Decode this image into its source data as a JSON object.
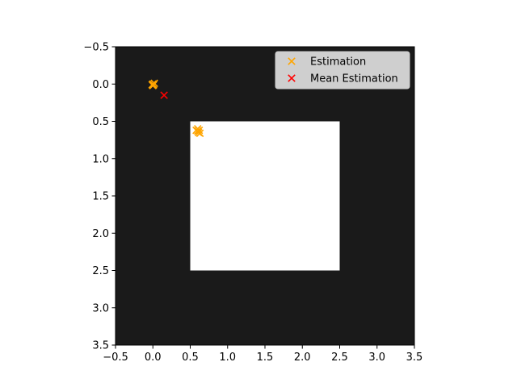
{
  "chart_data": {
    "type": "scatter",
    "title": "",
    "xlabel": "",
    "ylabel": "",
    "xlim": [
      -0.5,
      3.5
    ],
    "ylim": [
      3.5,
      -0.5
    ],
    "y_inverted": true,
    "grid": false,
    "x_ticks": [
      -0.5,
      0.0,
      0.5,
      1.0,
      1.5,
      2.0,
      2.5,
      3.0,
      3.5
    ],
    "x_tick_labels": [
      "−0.5",
      "0.0",
      "0.5",
      "1.0",
      "1.5",
      "2.0",
      "2.5",
      "3.0",
      "3.5"
    ],
    "y_ticks": [
      -0.5,
      0.0,
      0.5,
      1.0,
      1.5,
      2.0,
      2.5,
      3.0,
      3.5
    ],
    "y_tick_labels": [
      "−0.5",
      "0.0",
      "0.5",
      "1.0",
      "1.5",
      "2.0",
      "2.5",
      "3.0",
      "3.5"
    ],
    "background_image": {
      "type": "binary-grid",
      "grid": [
        [
          0,
          0,
          0,
          0
        ],
        [
          0,
          1,
          1,
          0
        ],
        [
          0,
          1,
          1,
          0
        ],
        [
          0,
          0,
          0,
          0
        ]
      ],
      "colors": {
        "0": "#1a1a1a",
        "1": "#ffffff"
      }
    },
    "legend_position": "upper-right",
    "series": [
      {
        "name": "Estimation",
        "marker": "x",
        "color": "#ffa500",
        "points": [
          [
            0.0,
            0.0
          ],
          [
            0.01,
            0.01
          ],
          [
            -0.01,
            0.01
          ],
          [
            0.02,
            -0.01
          ],
          [
            0.0,
            0.02
          ],
          [
            0.6,
            0.6
          ],
          [
            0.62,
            0.62
          ],
          [
            0.58,
            0.62
          ],
          [
            0.61,
            0.65
          ],
          [
            0.63,
            0.66
          ],
          [
            0.6,
            0.63
          ]
        ]
      },
      {
        "name": "Mean Estimation",
        "marker": "x",
        "color": "#ff0000",
        "points": [
          [
            0.15,
            0.15
          ]
        ]
      }
    ]
  }
}
